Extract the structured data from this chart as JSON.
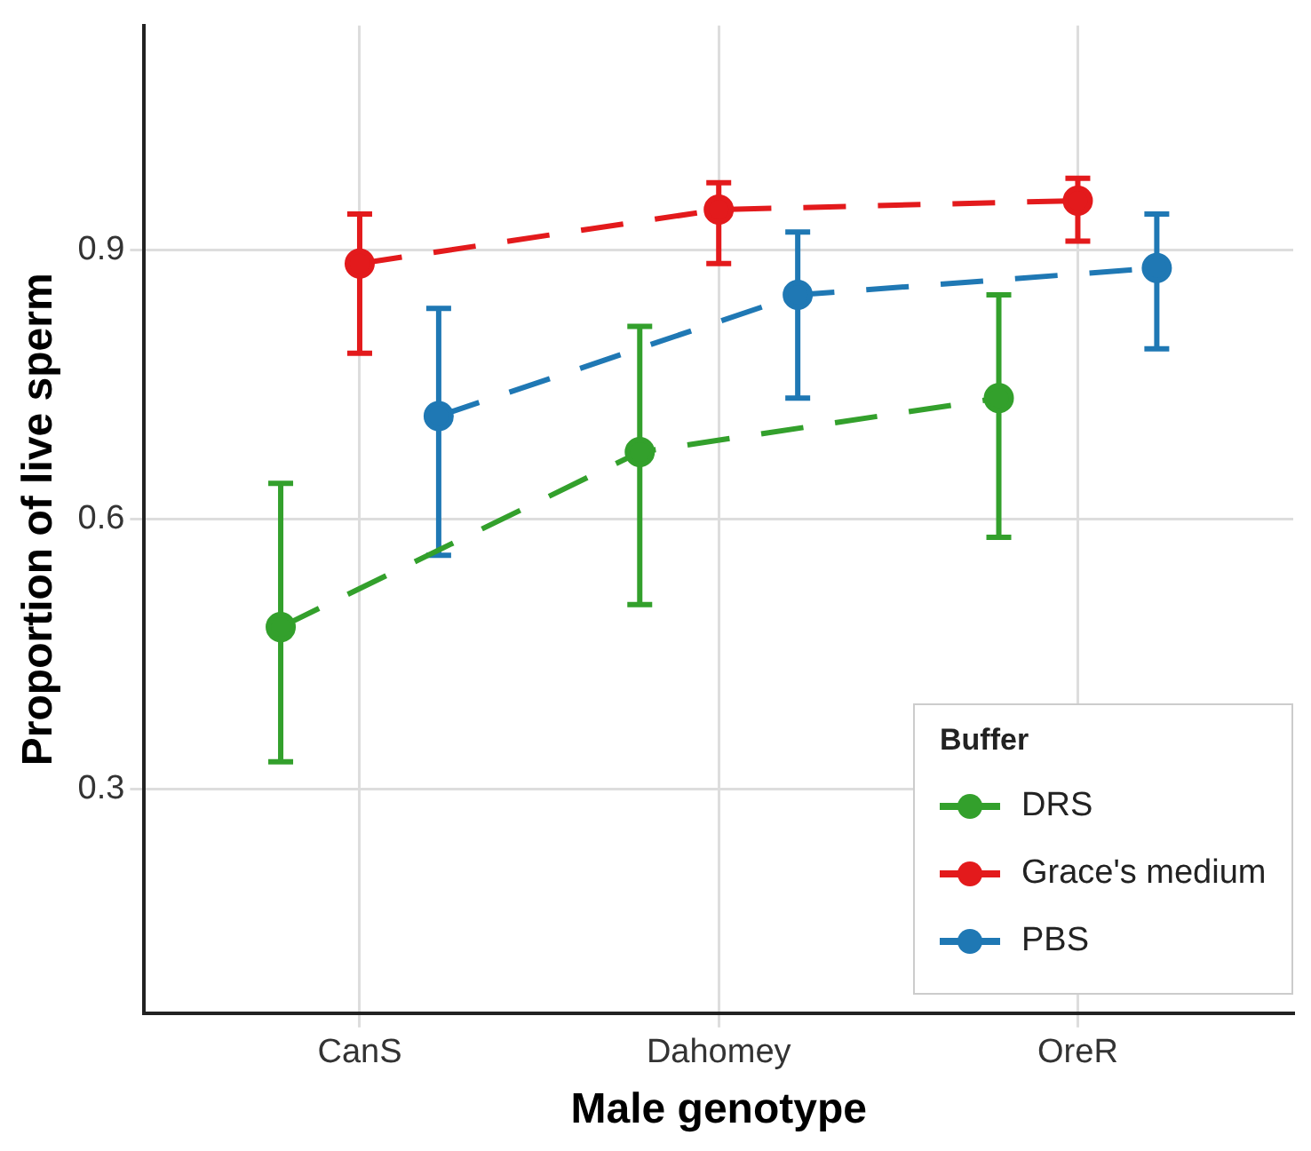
{
  "chart_data": {
    "type": "line",
    "xlabel": "Male genotype",
    "ylabel": "Proportion of live sperm",
    "legend_title": "Buffer",
    "categories": [
      "CanS",
      "Dahomey",
      "OreR"
    ],
    "ylim": [
      0.05,
      1.15
    ],
    "yticks": [
      0.3,
      0.6,
      0.9
    ],
    "grid": true,
    "legend": "bottom right",
    "marker": "circle",
    "line_style": "dashed",
    "series": [
      {
        "name": "DRS",
        "color": "#33a02c",
        "values": [
          0.48,
          0.675,
          0.735
        ],
        "errors": [
          [
            0.33,
            0.64
          ],
          [
            0.505,
            0.815
          ],
          [
            0.58,
            0.85
          ]
        ]
      },
      {
        "name": "Grace's medium",
        "color": "#e31a1c",
        "values": [
          0.885,
          0.945,
          0.955
        ],
        "errors": [
          [
            0.785,
            0.94
          ],
          [
            0.885,
            0.975
          ],
          [
            0.91,
            0.98
          ]
        ]
      },
      {
        "name": "PBS",
        "color": "#1f78b4",
        "values": [
          0.715,
          0.85,
          0.88
        ],
        "errors": [
          [
            0.56,
            0.835
          ],
          [
            0.735,
            0.92
          ],
          [
            0.79,
            0.94
          ]
        ]
      }
    ]
  }
}
